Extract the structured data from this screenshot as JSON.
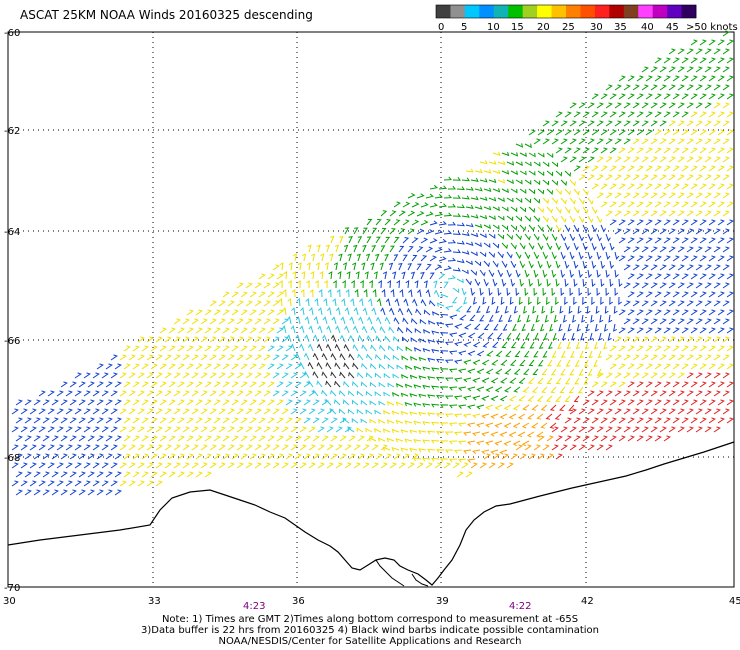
{
  "title": "ASCAT 25KM NOAA Winds 20160325 descending",
  "legend": {
    "colors": [
      "#404040",
      "#909090",
      "#00c8ff",
      "#0090ff",
      "#10b4b4",
      "#00c000",
      "#a0d020",
      "#ffff00",
      "#ffc000",
      "#ff8000",
      "#ff5000",
      "#ff2020",
      "#b00000",
      "#804020",
      "#ff40ff",
      "#c000c0",
      "#6000c0",
      "#300060"
    ],
    "labels": [
      "0",
      "5",
      "10",
      "15",
      "20",
      "25",
      "30",
      "35",
      "40",
      "45",
      ">50 knots"
    ]
  },
  "lat_labels": [
    "-60",
    "-62",
    "-64",
    "-66",
    "-68",
    "-70"
  ],
  "lon_labels": [
    "30",
    "33",
    "36",
    "39",
    "42",
    "45"
  ],
  "time_labels": [
    "4:23",
    "4:22"
  ],
  "notes": [
    "Note: 1) Times are GMT 2)Times along bottom correspond to measurement at -65S",
    "3)Data buffer is 22 hrs from 20160325 4) Black wind barbs indicate possible contamination",
    "NOAA/NESDIS/Center for Satellite Applications and Research"
  ]
}
